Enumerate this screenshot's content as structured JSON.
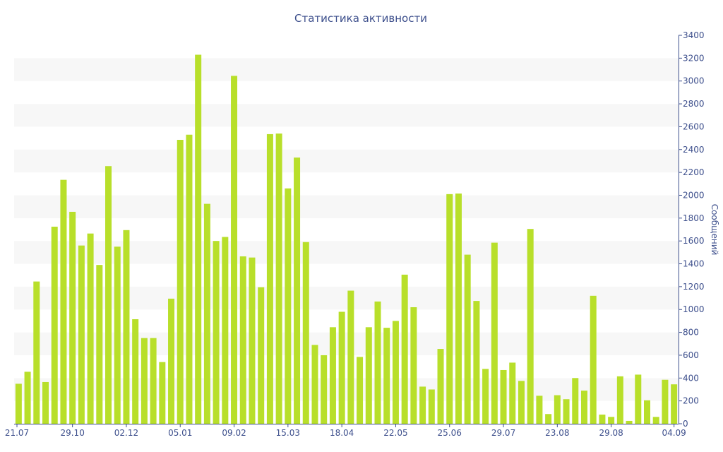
{
  "chart_data": {
    "type": "bar",
    "title": "Статистика активности",
    "xlabel": "",
    "ylabel": "Сообщений",
    "ylim": [
      0,
      3400
    ],
    "yticks": [
      0,
      200,
      400,
      600,
      800,
      1000,
      1200,
      1400,
      1600,
      1800,
      2000,
      2200,
      2400,
      2600,
      2800,
      3000,
      3200,
      3400
    ],
    "y_axis_side": "right",
    "grid": "alternating horizontal bands",
    "x_tick_labels": [
      "21.07",
      "29.10",
      "02.12",
      "05.01",
      "09.02",
      "15.03",
      "18.04",
      "22.05",
      "25.06",
      "29.07",
      "23.08",
      "29.08",
      "04.09"
    ],
    "x_tick_bar_index": [
      0,
      6,
      12,
      18,
      24,
      30,
      36,
      42,
      48,
      54,
      60,
      66,
      73
    ],
    "values": [
      350,
      455,
      1245,
      365,
      1725,
      2135,
      1855,
      1560,
      1665,
      1390,
      2255,
      1550,
      1695,
      915,
      750,
      750,
      540,
      1095,
      2485,
      2530,
      3230,
      1925,
      1600,
      1635,
      3045,
      1465,
      1455,
      1195,
      2535,
      2540,
      2060,
      2330,
      1590,
      690,
      600,
      845,
      980,
      1165,
      585,
      845,
      1070,
      840,
      900,
      1305,
      1020,
      325,
      300,
      655,
      2010,
      2015,
      1480,
      1075,
      480,
      1585,
      470,
      535,
      375,
      1705,
      245,
      85,
      250,
      215,
      400,
      290,
      1120,
      80,
      60,
      415,
      25,
      430,
      205,
      60,
      385,
      345
    ],
    "colors": {
      "bar": "#b8df2a",
      "band": "#f7f7f7",
      "axis": "#3d4f8c",
      "text": "#3d4f8c"
    }
  }
}
